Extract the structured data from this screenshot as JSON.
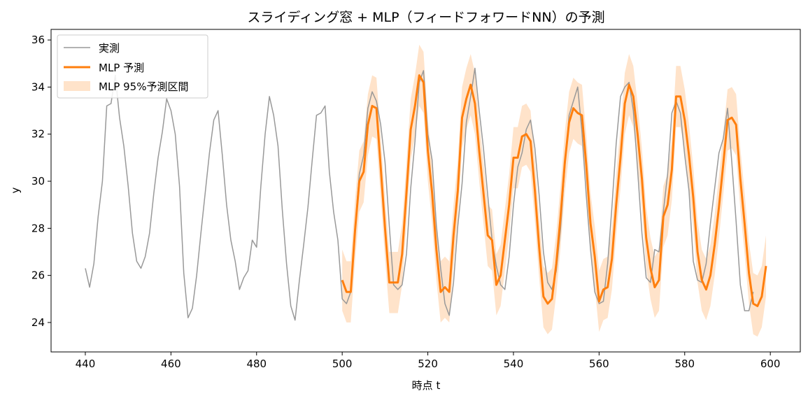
{
  "chart_data": {
    "type": "line",
    "title": "スライディング窓 + MLP（フィードフォワードNN）の予測",
    "xlabel": "時点 t",
    "ylabel": "y",
    "xlim": [
      432,
      607
    ],
    "ylim": [
      22.75,
      36.45
    ],
    "xticks": [
      440,
      460,
      480,
      500,
      520,
      540,
      560,
      580,
      600
    ],
    "yticks": [
      24,
      26,
      28,
      30,
      32,
      34,
      36
    ],
    "grid": false,
    "legend_position": "upper-left",
    "series": [
      {
        "name": "実測",
        "color": "#999999",
        "x_start": 440,
        "values": [
          26.3,
          25.5,
          26.5,
          28.5,
          30.0,
          33.2,
          33.3,
          34.5,
          32.7,
          31.5,
          29.8,
          27.8,
          26.6,
          26.3,
          26.8,
          27.8,
          29.5,
          31.0,
          32.1,
          33.5,
          33.0,
          32.0,
          29.8,
          26.1,
          24.2,
          24.6,
          26.0,
          27.8,
          29.5,
          31.2,
          32.6,
          33.0,
          31.1,
          29.0,
          27.5,
          26.6,
          25.4,
          25.9,
          26.2,
          27.5,
          27.2,
          29.8,
          32.0,
          33.6,
          32.8,
          31.5,
          28.8,
          26.5,
          24.7,
          24.1,
          25.8,
          27.3,
          28.9,
          30.9,
          32.8,
          32.9,
          33.2,
          30.4,
          28.7,
          27.5,
          25.0,
          24.8,
          25.3,
          28.0,
          30.3,
          31.1,
          33.1,
          33.8,
          33.4,
          32.4,
          30.8,
          28.1,
          25.6,
          25.4,
          25.6,
          26.9,
          29.7,
          31.7,
          34.2,
          34.7,
          32.0,
          30.9,
          28.1,
          26.3,
          24.8,
          24.3,
          25.7,
          28.1,
          29.9,
          32.5,
          33.6,
          34.8,
          33.0,
          31.4,
          29.4,
          27.5,
          26.4,
          25.6,
          25.4,
          26.8,
          29.0,
          30.6,
          31.2,
          32.2,
          32.6,
          31.4,
          29.4,
          27.0,
          25.7,
          25.4,
          26.2,
          28.0,
          30.6,
          32.8,
          33.4,
          34.0,
          32.1,
          29.4,
          27.1,
          25.3,
          24.8,
          24.9,
          26.5,
          28.9,
          31.6,
          33.6,
          34.0,
          34.2,
          33.0,
          30.5,
          27.8,
          25.9,
          25.7,
          27.1,
          27.0,
          28.7,
          30.3,
          32.9,
          33.4,
          32.9,
          31.1,
          29.6,
          26.6,
          25.8,
          25.7,
          26.5,
          28.2,
          29.7,
          31.2,
          31.8,
          33.1,
          30.8,
          28.3,
          25.6,
          24.5,
          24.5,
          25.3
        ]
      },
      {
        "name": "MLP 予測",
        "color": "#ff7f0e",
        "x_start": 500,
        "values": [
          25.8,
          25.3,
          25.3,
          27.9,
          30.0,
          30.4,
          32.4,
          33.2,
          33.1,
          30.6,
          28.0,
          25.7,
          25.7,
          25.7,
          26.9,
          29.5,
          32.2,
          33.2,
          34.5,
          34.2,
          31.3,
          29.5,
          27.1,
          25.3,
          25.5,
          25.3,
          27.7,
          29.6,
          32.7,
          33.5,
          34.1,
          33.3,
          31.3,
          29.5,
          27.7,
          27.5,
          25.6,
          26.0,
          27.5,
          29.0,
          31.0,
          31.0,
          31.9,
          32.0,
          31.7,
          29.6,
          27.2,
          25.1,
          24.8,
          25.0,
          26.5,
          28.5,
          30.8,
          32.5,
          33.1,
          32.9,
          32.8,
          30.7,
          28.2,
          26.8,
          24.9,
          25.4,
          25.5,
          26.7,
          29.0,
          31.0,
          33.3,
          34.1,
          33.6,
          32.0,
          30.1,
          27.6,
          26.3,
          25.5,
          25.8,
          28.5,
          29.0,
          30.5,
          33.6,
          33.6,
          32.6,
          31.1,
          29.3,
          27.0,
          25.8,
          25.4,
          26.0,
          27.3,
          28.9,
          30.7,
          32.6,
          32.7,
          32.4,
          30.1,
          28.2,
          26.1,
          24.8,
          24.7,
          25.1,
          26.4
        ]
      }
    ],
    "band": {
      "name": "MLP 95%予測区間",
      "color": "#ff7f0e",
      "opacity": 0.22,
      "x_start": 500,
      "half_width": 1.3
    }
  }
}
